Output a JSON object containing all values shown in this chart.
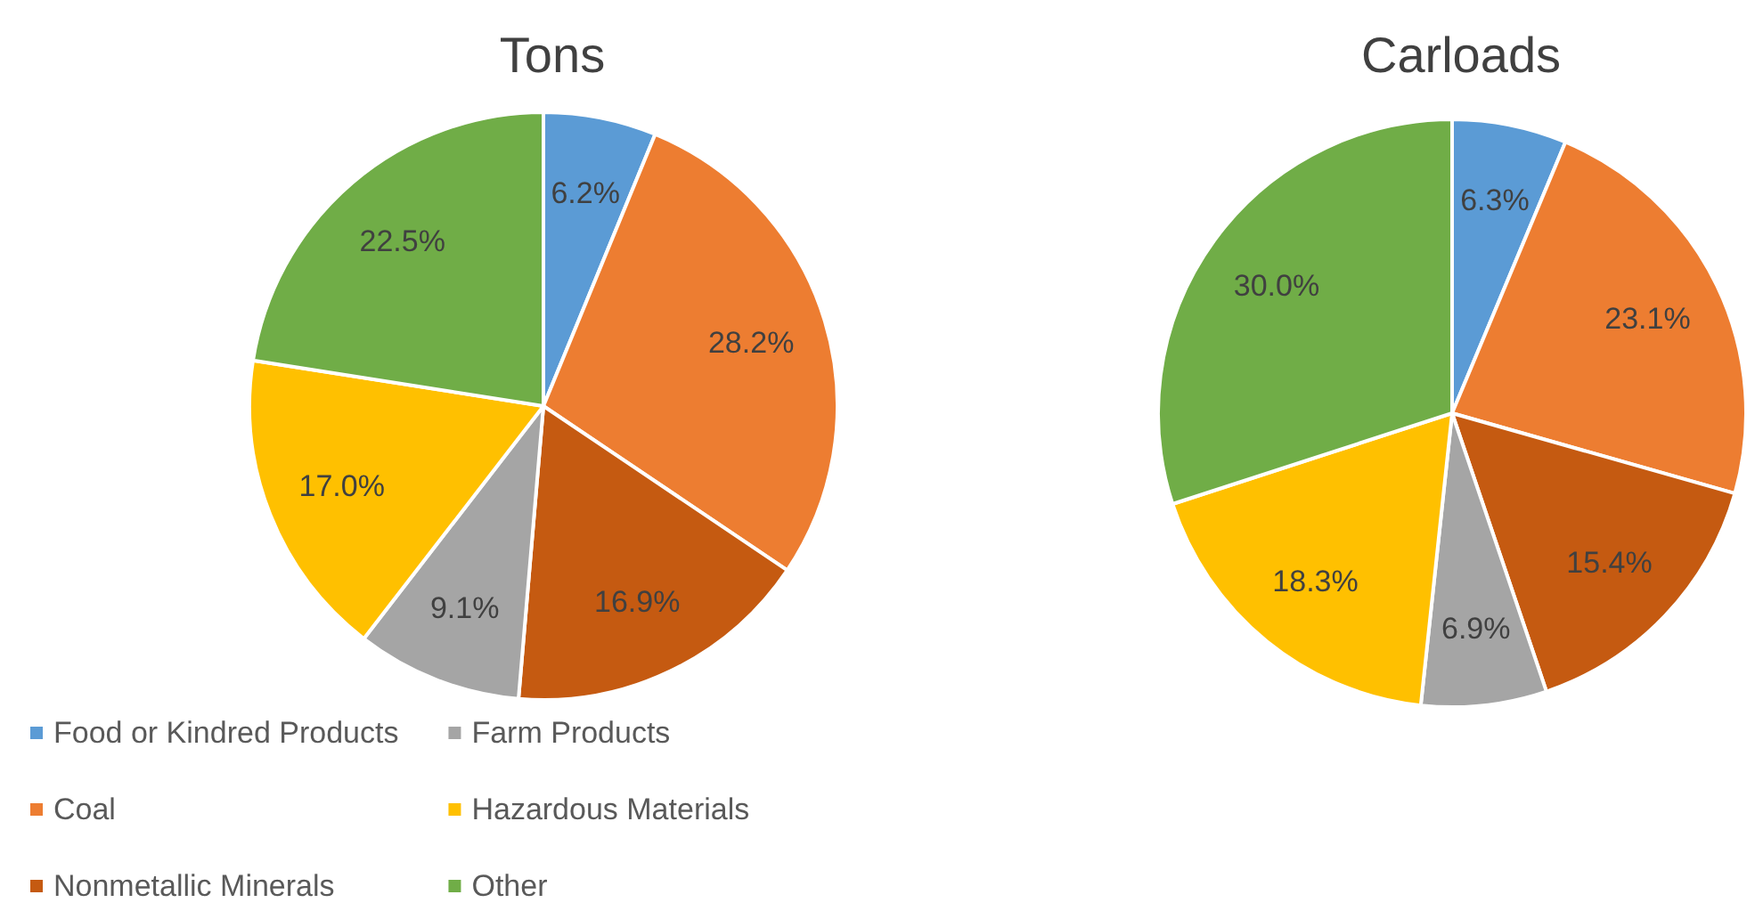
{
  "chart_data": [
    {
      "type": "pie",
      "title": "Tons",
      "categories": [
        "Food or Kindred Products",
        "Coal",
        "Nonmetallic Minerals",
        "Farm Products",
        "Hazardous Materials",
        "Other"
      ],
      "values": [
        6.2,
        28.2,
        16.9,
        9.1,
        17.0,
        22.5
      ],
      "value_labels": [
        "6.2%",
        "28.2%",
        "16.9%",
        "9.1%",
        "17.0%",
        "22.5%"
      ],
      "colors": [
        "#5b9bd5",
        "#ed7d31",
        "#c55a11",
        "#a5a5a5",
        "#ffc000",
        "#70ad47"
      ],
      "legend": "bottom"
    },
    {
      "type": "pie",
      "title": "Carloads",
      "categories": [
        null,
        null,
        null,
        null,
        null,
        null
      ],
      "values": [
        6.3,
        23.1,
        15.4,
        6.9,
        18.3,
        30.0
      ],
      "value_labels": [
        "6.3%",
        "23.1%",
        "15.4%",
        "6.9%",
        "18.3%",
        "30.0%"
      ],
      "colors": [
        "#5b9bd5",
        "#ed7d31",
        "#c55a11",
        "#a5a5a5",
        "#ffc000",
        "#70ad47"
      ]
    }
  ]
}
